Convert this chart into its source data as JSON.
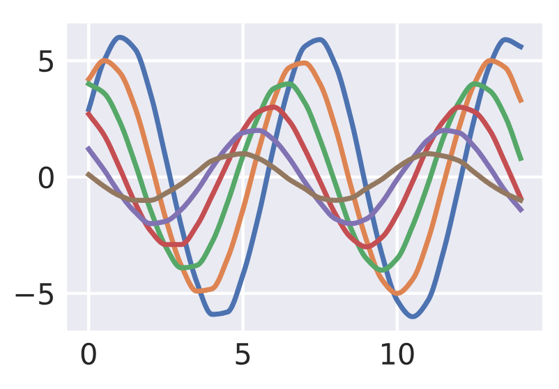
{
  "chart_data": {
    "type": "line",
    "x": [
      0,
      0.5,
      1,
      1.5,
      2,
      2.5,
      3,
      3.5,
      4,
      4.5,
      5,
      5.5,
      6,
      6.5,
      7,
      7.5,
      8,
      8.5,
      9,
      9.5,
      10,
      10.5,
      11,
      11.5,
      12,
      12.5,
      13,
      13.5,
      14
    ],
    "series": [
      {
        "color": "#4c72b0",
        "values": [
          2.9,
          5.0,
          6.0,
          5.5,
          3.6,
          0.8,
          -2.1,
          -4.5,
          -5.9,
          -5.8,
          -4.2,
          -1.7,
          1.3,
          3.9,
          5.6,
          5.9,
          4.8,
          2.5,
          -0.5,
          -3.3,
          -5.3,
          -6.0,
          -5.3,
          -3.2,
          -0.4,
          2.5,
          4.8,
          5.9,
          5.6
        ]
      },
      {
        "color": "#dd8452",
        "values": [
          4.2,
          5.0,
          4.5,
          3.0,
          0.7,
          -1.8,
          -3.8,
          -4.9,
          -4.8,
          -3.5,
          -1.4,
          1.1,
          3.3,
          4.7,
          4.9,
          4.0,
          2.1,
          -0.4,
          -2.7,
          -4.4,
          -5.0,
          -4.4,
          -2.7,
          -0.3,
          2.1,
          4.0,
          5.0,
          4.7,
          3.3
        ]
      },
      {
        "color": "#55a868",
        "values": [
          4.0,
          3.6,
          2.4,
          0.6,
          -1.4,
          -3.0,
          -3.9,
          -3.8,
          -2.8,
          -1.1,
          0.9,
          2.6,
          3.8,
          4.0,
          3.2,
          1.6,
          -0.3,
          -2.2,
          -3.5,
          -4.0,
          -3.5,
          -2.1,
          -0.3,
          1.7,
          3.2,
          4.0,
          3.7,
          2.6,
          0.8
        ]
      },
      {
        "color": "#c44e52",
        "values": [
          2.7,
          1.8,
          0.4,
          -1.1,
          -2.3,
          -2.9,
          -2.9,
          -2.1,
          -0.8,
          0.6,
          2.0,
          2.8,
          3.0,
          2.4,
          1.2,
          -0.2,
          -1.6,
          -2.6,
          -3.0,
          -2.6,
          -1.6,
          -0.2,
          1.3,
          2.4,
          3.0,
          2.8,
          2.0,
          0.6,
          -0.9
        ]
      },
      {
        "color": "#8172b3",
        "values": [
          1.2,
          0.3,
          -0.7,
          -1.5,
          -2.0,
          -1.9,
          -1.4,
          -0.6,
          0.4,
          1.3,
          1.9,
          2.0,
          1.6,
          0.8,
          -0.2,
          -1.1,
          -1.8,
          -2.0,
          -1.8,
          -1.1,
          -0.1,
          0.8,
          1.6,
          2.0,
          1.9,
          1.3,
          0.4,
          -0.6,
          -1.4
        ]
      },
      {
        "color": "#937860",
        "values": [
          0.1,
          -0.4,
          -0.8,
          -1.0,
          -1.0,
          -0.7,
          -0.3,
          0.2,
          0.7,
          0.9,
          1.0,
          0.8,
          0.4,
          -0.1,
          -0.5,
          -0.9,
          -1.0,
          -0.9,
          -0.5,
          -0.1,
          0.4,
          0.8,
          1.0,
          0.9,
          0.7,
          0.2,
          -0.3,
          -0.7,
          -1.0
        ]
      }
    ],
    "xlim": [
      -0.7,
      14.7
    ],
    "ylim": [
      -6.6,
      6.6
    ],
    "xticks": [
      0,
      5,
      10
    ],
    "yticks": [
      {
        "value": -5,
        "label": "−5"
      },
      0,
      5
    ],
    "grid": true,
    "marker": "none",
    "line_style": "solid"
  }
}
